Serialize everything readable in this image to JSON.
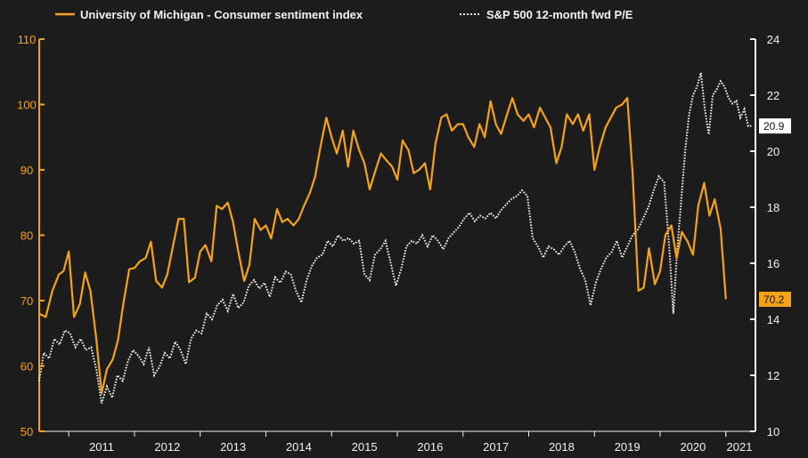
{
  "colors": {
    "background": "#1c1c1c",
    "sentiment": "#f5a21b",
    "pe": "#f2f2f2"
  },
  "chart_data": {
    "type": "line",
    "title": "",
    "xlabel": "",
    "ylabel_left": "",
    "ylabel_right": "",
    "grid": false,
    "legend_position": "top",
    "x_ticks": [
      "2011",
      "2012",
      "2013",
      "2014",
      "2015",
      "2016",
      "2017",
      "2018",
      "2019",
      "2020",
      "2021"
    ],
    "x_range": [
      2010.55,
      2021.45
    ],
    "left_axis": {
      "ylim": [
        50,
        110
      ],
      "ticks": [
        "50",
        "60",
        "70",
        "80",
        "90",
        "100",
        "110"
      ]
    },
    "right_axis": {
      "ylim": [
        10,
        24
      ],
      "ticks": [
        "10",
        "12",
        "14",
        "16",
        "18",
        "20",
        "22",
        "24"
      ]
    },
    "series": [
      {
        "name": "University of Michigan - Consumer sentiment index",
        "axis": "left",
        "style": "solid",
        "last_value_label": "70.2",
        "points": [
          [
            2010.55,
            68.0
          ],
          [
            2010.65,
            67.5
          ],
          [
            2010.75,
            71.5
          ],
          [
            2010.85,
            74.0
          ],
          [
            2010.92,
            74.5
          ],
          [
            2011.0,
            77.5
          ],
          [
            2011.08,
            67.5
          ],
          [
            2011.17,
            69.5
          ],
          [
            2011.25,
            74.3
          ],
          [
            2011.33,
            71.5
          ],
          [
            2011.42,
            64.0
          ],
          [
            2011.5,
            55.8
          ],
          [
            2011.58,
            59.5
          ],
          [
            2011.67,
            61.0
          ],
          [
            2011.75,
            64.0
          ],
          [
            2011.83,
            69.5
          ],
          [
            2011.92,
            74.8
          ],
          [
            2012.0,
            75.0
          ],
          [
            2012.08,
            76.0
          ],
          [
            2012.17,
            76.5
          ],
          [
            2012.25,
            79.0
          ],
          [
            2012.33,
            73.0
          ],
          [
            2012.42,
            72.0
          ],
          [
            2012.5,
            74.0
          ],
          [
            2012.58,
            78.0
          ],
          [
            2012.67,
            82.5
          ],
          [
            2012.75,
            82.5
          ],
          [
            2012.83,
            72.8
          ],
          [
            2012.92,
            73.5
          ],
          [
            2013.0,
            77.5
          ],
          [
            2013.08,
            78.5
          ],
          [
            2013.17,
            76.0
          ],
          [
            2013.25,
            84.5
          ],
          [
            2013.33,
            84.0
          ],
          [
            2013.42,
            85.0
          ],
          [
            2013.5,
            82.0
          ],
          [
            2013.58,
            77.5
          ],
          [
            2013.67,
            73.0
          ],
          [
            2013.75,
            75.5
          ],
          [
            2013.83,
            82.5
          ],
          [
            2013.92,
            80.8
          ],
          [
            2014.0,
            81.5
          ],
          [
            2014.08,
            79.5
          ],
          [
            2014.17,
            84.0
          ],
          [
            2014.25,
            82.0
          ],
          [
            2014.33,
            82.5
          ],
          [
            2014.42,
            81.5
          ],
          [
            2014.5,
            82.5
          ],
          [
            2014.58,
            84.5
          ],
          [
            2014.67,
            86.5
          ],
          [
            2014.75,
            89.0
          ],
          [
            2014.83,
            93.5
          ],
          [
            2014.92,
            98.0
          ],
          [
            2015.0,
            95.0
          ],
          [
            2015.08,
            92.5
          ],
          [
            2015.17,
            96.0
          ],
          [
            2015.25,
            90.5
          ],
          [
            2015.33,
            96.0
          ],
          [
            2015.42,
            93.0
          ],
          [
            2015.5,
            91.0
          ],
          [
            2015.58,
            87.0
          ],
          [
            2015.67,
            90.0
          ],
          [
            2015.75,
            92.5
          ],
          [
            2015.83,
            91.5
          ],
          [
            2015.92,
            90.5
          ],
          [
            2016.0,
            88.5
          ],
          [
            2016.08,
            94.5
          ],
          [
            2016.17,
            93.0
          ],
          [
            2016.25,
            89.5
          ],
          [
            2016.33,
            90.0
          ],
          [
            2016.42,
            91.0
          ],
          [
            2016.5,
            87.0
          ],
          [
            2016.58,
            94.0
          ],
          [
            2016.67,
            98.0
          ],
          [
            2016.75,
            98.5
          ],
          [
            2016.83,
            96.0
          ],
          [
            2016.92,
            97.0
          ],
          [
            2017.0,
            97.0
          ],
          [
            2017.08,
            95.0
          ],
          [
            2017.17,
            93.5
          ],
          [
            2017.25,
            97.0
          ],
          [
            2017.33,
            95.0
          ],
          [
            2017.42,
            100.5
          ],
          [
            2017.5,
            97.0
          ],
          [
            2017.58,
            95.5
          ],
          [
            2017.67,
            98.5
          ],
          [
            2017.75,
            101.0
          ],
          [
            2017.83,
            98.5
          ],
          [
            2017.92,
            97.5
          ],
          [
            2018.0,
            98.5
          ],
          [
            2018.08,
            96.5
          ],
          [
            2018.17,
            99.5
          ],
          [
            2018.25,
            98.0
          ],
          [
            2018.33,
            96.5
          ],
          [
            2018.42,
            91.0
          ],
          [
            2018.5,
            93.5
          ],
          [
            2018.58,
            98.5
          ],
          [
            2018.67,
            97.0
          ],
          [
            2018.75,
            98.5
          ],
          [
            2018.83,
            96.0
          ],
          [
            2018.92,
            98.5
          ],
          [
            2019.0,
            90.0
          ],
          [
            2019.08,
            93.5
          ],
          [
            2019.17,
            96.5
          ],
          [
            2019.25,
            98.0
          ],
          [
            2019.33,
            99.5
          ],
          [
            2019.42,
            100.0
          ],
          [
            2019.5,
            101.0
          ],
          [
            2019.58,
            89.5
          ],
          [
            2019.67,
            71.5
          ],
          [
            2019.75,
            72.0
          ],
          [
            2019.83,
            78.0
          ],
          [
            2019.92,
            72.5
          ],
          [
            2020.0,
            74.5
          ],
          [
            2020.08,
            80.0
          ],
          [
            2020.17,
            81.5
          ],
          [
            2020.25,
            76.5
          ],
          [
            2020.33,
            80.5
          ],
          [
            2020.42,
            79.0
          ],
          [
            2020.5,
            77.0
          ],
          [
            2020.58,
            84.5
          ],
          [
            2020.67,
            88.0
          ],
          [
            2020.75,
            83.0
          ],
          [
            2020.83,
            85.5
          ],
          [
            2020.92,
            81.0
          ],
          [
            2021.0,
            70.2
          ]
        ]
      },
      {
        "name": "S&P 500 12-month fwd P/E",
        "axis": "right",
        "style": "dotted",
        "last_value_label": "20.9",
        "points": [
          [
            2010.55,
            11.8
          ],
          [
            2010.62,
            12.8
          ],
          [
            2010.7,
            12.6
          ],
          [
            2010.78,
            13.3
          ],
          [
            2010.86,
            13.1
          ],
          [
            2010.94,
            13.6
          ],
          [
            2011.02,
            13.5
          ],
          [
            2011.1,
            13.0
          ],
          [
            2011.18,
            13.3
          ],
          [
            2011.26,
            12.9
          ],
          [
            2011.34,
            13.0
          ],
          [
            2011.42,
            12.2
          ],
          [
            2011.5,
            11.0
          ],
          [
            2011.58,
            11.6
          ],
          [
            2011.66,
            11.2
          ],
          [
            2011.74,
            12.0
          ],
          [
            2011.82,
            11.8
          ],
          [
            2011.9,
            12.5
          ],
          [
            2011.98,
            12.9
          ],
          [
            2012.06,
            12.7
          ],
          [
            2012.14,
            12.4
          ],
          [
            2012.22,
            13.0
          ],
          [
            2012.3,
            12.0
          ],
          [
            2012.38,
            12.3
          ],
          [
            2012.46,
            12.8
          ],
          [
            2012.54,
            12.6
          ],
          [
            2012.62,
            13.2
          ],
          [
            2012.7,
            12.9
          ],
          [
            2012.78,
            12.4
          ],
          [
            2012.86,
            13.3
          ],
          [
            2012.94,
            13.6
          ],
          [
            2013.02,
            13.5
          ],
          [
            2013.1,
            14.2
          ],
          [
            2013.18,
            14.0
          ],
          [
            2013.26,
            14.5
          ],
          [
            2013.34,
            14.7
          ],
          [
            2013.42,
            14.3
          ],
          [
            2013.5,
            14.9
          ],
          [
            2013.58,
            14.4
          ],
          [
            2013.66,
            14.6
          ],
          [
            2013.74,
            15.2
          ],
          [
            2013.82,
            15.4
          ],
          [
            2013.9,
            15.1
          ],
          [
            2013.98,
            15.3
          ],
          [
            2014.06,
            14.8
          ],
          [
            2014.14,
            15.5
          ],
          [
            2014.22,
            15.3
          ],
          [
            2014.3,
            15.7
          ],
          [
            2014.38,
            15.6
          ],
          [
            2014.46,
            15.0
          ],
          [
            2014.54,
            14.6
          ],
          [
            2014.62,
            15.4
          ],
          [
            2014.7,
            15.9
          ],
          [
            2014.78,
            16.2
          ],
          [
            2014.86,
            16.3
          ],
          [
            2014.94,
            16.8
          ],
          [
            2015.02,
            16.6
          ],
          [
            2015.1,
            17.0
          ],
          [
            2015.18,
            16.8
          ],
          [
            2015.26,
            16.9
          ],
          [
            2015.34,
            16.7
          ],
          [
            2015.42,
            16.8
          ],
          [
            2015.5,
            15.6
          ],
          [
            2015.58,
            15.4
          ],
          [
            2015.66,
            16.3
          ],
          [
            2015.74,
            16.5
          ],
          [
            2015.82,
            16.8
          ],
          [
            2015.9,
            16.0
          ],
          [
            2015.98,
            15.2
          ],
          [
            2016.06,
            15.8
          ],
          [
            2016.14,
            16.6
          ],
          [
            2016.22,
            16.8
          ],
          [
            2016.3,
            16.7
          ],
          [
            2016.38,
            17.0
          ],
          [
            2016.46,
            16.6
          ],
          [
            2016.54,
            17.0
          ],
          [
            2016.62,
            16.8
          ],
          [
            2016.7,
            16.5
          ],
          [
            2016.78,
            16.9
          ],
          [
            2016.86,
            17.1
          ],
          [
            2016.94,
            17.3
          ],
          [
            2017.02,
            17.6
          ],
          [
            2017.1,
            17.8
          ],
          [
            2017.18,
            17.5
          ],
          [
            2017.26,
            17.7
          ],
          [
            2017.34,
            17.6
          ],
          [
            2017.42,
            17.8
          ],
          [
            2017.5,
            17.6
          ],
          [
            2017.58,
            17.9
          ],
          [
            2017.66,
            18.1
          ],
          [
            2017.74,
            18.3
          ],
          [
            2017.82,
            18.4
          ],
          [
            2017.9,
            18.6
          ],
          [
            2017.98,
            18.4
          ],
          [
            2018.06,
            16.9
          ],
          [
            2018.14,
            16.6
          ],
          [
            2018.22,
            16.2
          ],
          [
            2018.3,
            16.6
          ],
          [
            2018.38,
            16.5
          ],
          [
            2018.46,
            16.3
          ],
          [
            2018.54,
            16.6
          ],
          [
            2018.62,
            16.8
          ],
          [
            2018.7,
            16.4
          ],
          [
            2018.78,
            15.8
          ],
          [
            2018.86,
            15.4
          ],
          [
            2018.94,
            14.5
          ],
          [
            2019.02,
            15.3
          ],
          [
            2019.1,
            15.8
          ],
          [
            2019.18,
            16.2
          ],
          [
            2019.26,
            16.4
          ],
          [
            2019.34,
            16.8
          ],
          [
            2019.42,
            16.2
          ],
          [
            2019.5,
            16.6
          ],
          [
            2019.58,
            17.0
          ],
          [
            2019.66,
            17.2
          ],
          [
            2019.74,
            17.6
          ],
          [
            2019.82,
            18.0
          ],
          [
            2019.9,
            18.6
          ],
          [
            2019.98,
            19.1
          ],
          [
            2020.06,
            18.9
          ],
          [
            2020.14,
            16.5
          ],
          [
            2020.2,
            14.2
          ],
          [
            2020.26,
            16.5
          ],
          [
            2020.32,
            18.2
          ],
          [
            2020.38,
            20.0
          ],
          [
            2020.44,
            21.3
          ],
          [
            2020.5,
            22.0
          ],
          [
            2020.56,
            22.3
          ],
          [
            2020.62,
            22.8
          ],
          [
            2020.68,
            21.5
          ],
          [
            2020.74,
            20.6
          ],
          [
            2020.8,
            22.0
          ],
          [
            2020.86,
            22.2
          ],
          [
            2020.92,
            22.5
          ],
          [
            2020.98,
            22.3
          ],
          [
            2021.04,
            21.9
          ],
          [
            2021.1,
            21.7
          ],
          [
            2021.16,
            21.8
          ],
          [
            2021.22,
            21.2
          ],
          [
            2021.28,
            21.5
          ],
          [
            2021.34,
            20.9
          ],
          [
            2021.4,
            20.9
          ]
        ]
      }
    ]
  }
}
